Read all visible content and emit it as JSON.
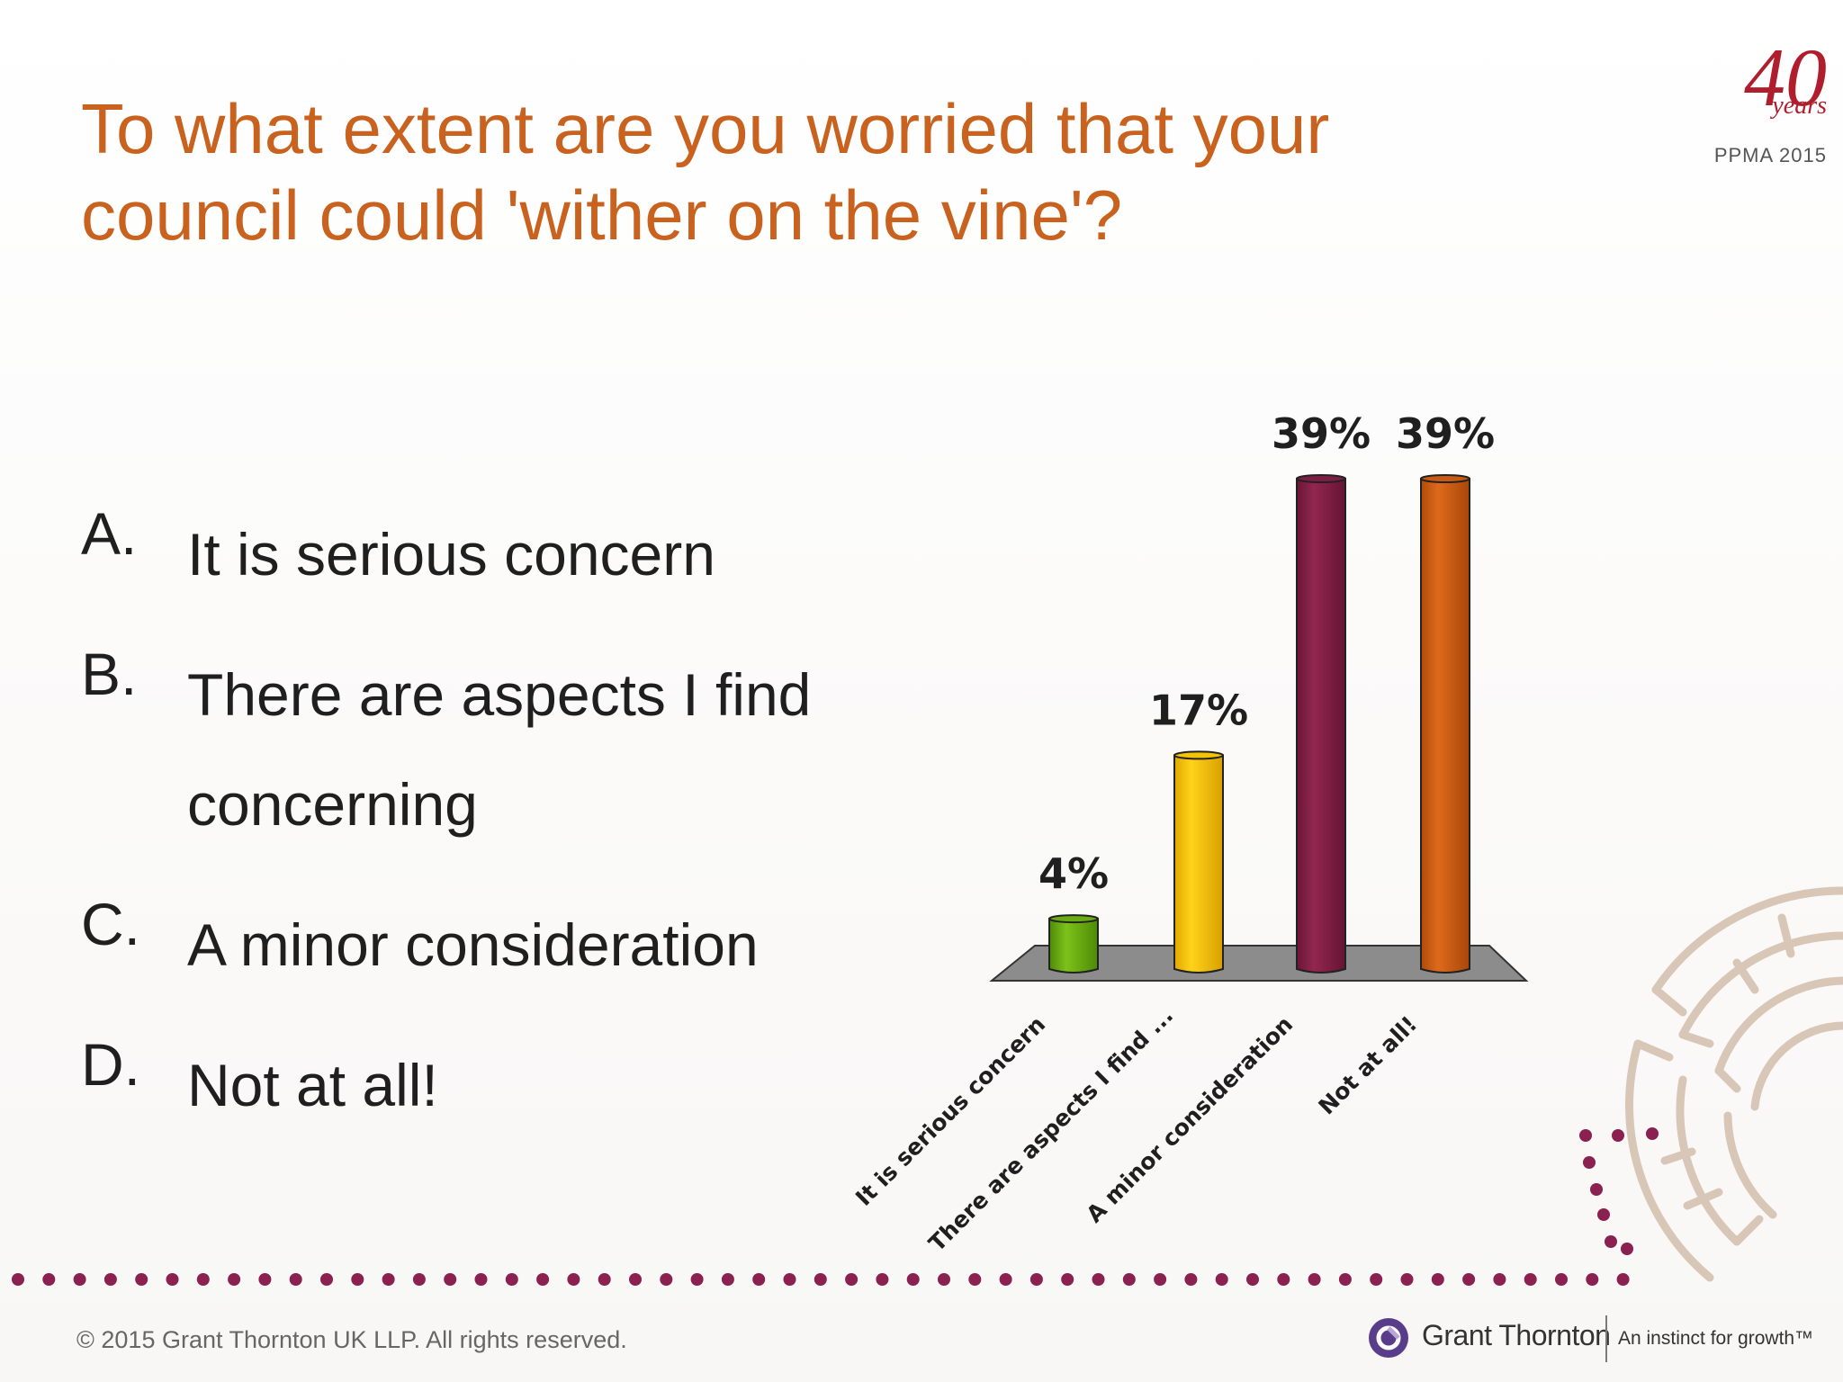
{
  "title_lines": [
    "To what extent are you worried that your",
    "council could 'wither on the vine'?"
  ],
  "badge": {
    "number": "40",
    "years": "years",
    "event": "PPMA 2015"
  },
  "options": [
    {
      "letter": "A.",
      "text": "It is serious concern"
    },
    {
      "letter": "B.",
      "text": "There are aspects I find concerning"
    },
    {
      "letter": "C.",
      "text": "A minor consideration"
    },
    {
      "letter": "D.",
      "text": "Not at all!"
    }
  ],
  "chart_data": {
    "type": "bar",
    "categories": [
      "It is serious concern",
      "There are aspects I find ...",
      "A minor consideration",
      "Not at all!"
    ],
    "values": [
      4,
      17,
      39,
      39
    ],
    "data_labels": [
      "4%",
      "17%",
      "39%",
      "39%"
    ],
    "colors": [
      "#6aaa12",
      "#f3c400",
      "#7f1e45",
      "#c85a12"
    ],
    "unit": "%",
    "ylim": [
      0,
      39
    ],
    "grid": false,
    "legend": "none",
    "style": "3d-cylinder-bars-on-grey-floor"
  },
  "footer": {
    "copyright": "© 2015 Grant Thornton UK LLP. All rights reserved.",
    "company": "Grant Thornton",
    "tagline": "An instinct for growth™"
  },
  "colors": {
    "title": "#c8621e",
    "dots": "#8a2150",
    "badge": "#b01e2e",
    "brand": "#5a3d8a"
  }
}
